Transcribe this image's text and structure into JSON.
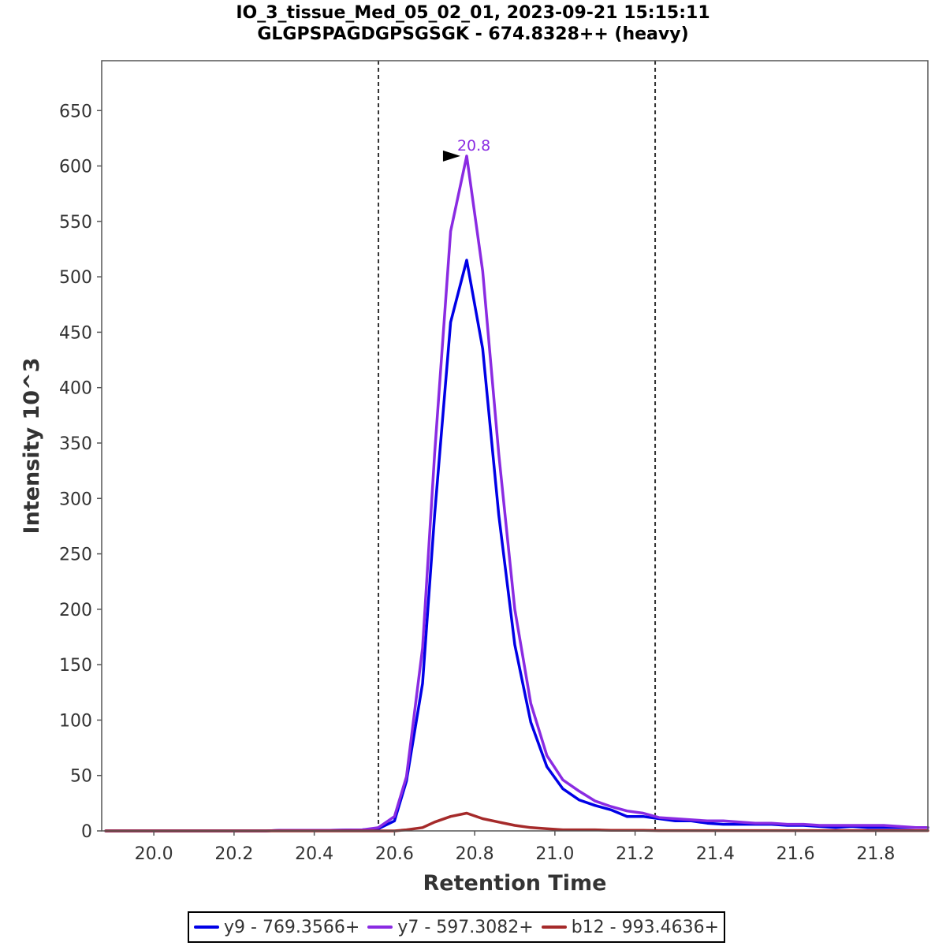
{
  "title_line1": "IO_3_tissue_Med_05_02_01, 2023-09-21 15:15:11",
  "title_line2": "GLGPSPAGDGPSGSGK - 674.8328++ (heavy)",
  "chart_data": {
    "type": "line",
    "xlabel": "Retention Time",
    "ylabel": "Intensity 10^3",
    "xlim": [
      19.87,
      21.93
    ],
    "ylim": [
      0,
      695
    ],
    "x_ticks": [
      "20.0",
      "20.2",
      "20.4",
      "20.6",
      "20.8",
      "21.0",
      "21.2",
      "21.4",
      "21.6",
      "21.8"
    ],
    "y_ticks": [
      "0",
      "50",
      "100",
      "150",
      "200",
      "250",
      "300",
      "350",
      "400",
      "450",
      "500",
      "550",
      "600",
      "650"
    ],
    "integration_bounds": [
      20.56,
      21.25
    ],
    "peak_annotation": {
      "label": "20.8",
      "x": 20.78,
      "y": 609,
      "color": "#8a2be2"
    },
    "x": [
      19.88,
      19.92,
      19.96,
      20.0,
      20.04,
      20.08,
      20.12,
      20.16,
      20.2,
      20.24,
      20.28,
      20.32,
      20.36,
      20.4,
      20.44,
      20.48,
      20.52,
      20.56,
      20.6,
      20.63,
      20.67,
      20.7,
      20.74,
      20.78,
      20.82,
      20.86,
      20.9,
      20.94,
      20.98,
      21.02,
      21.06,
      21.1,
      21.14,
      21.18,
      21.22,
      21.26,
      21.3,
      21.34,
      21.38,
      21.42,
      21.46,
      21.5,
      21.54,
      21.58,
      21.62,
      21.66,
      21.7,
      21.74,
      21.78,
      21.82,
      21.86,
      21.9,
      21.93
    ],
    "series": [
      {
        "name": "y9 - 769.3566+",
        "color": "#0000e6",
        "values": [
          0,
          0,
          0,
          0,
          0,
          0,
          0,
          0,
          0,
          0,
          0,
          0.5,
          0.5,
          0.5,
          0.5,
          0.8,
          1,
          2,
          9,
          45,
          133,
          285,
          459,
          515,
          435,
          285,
          168,
          98,
          58,
          38,
          28,
          23,
          19,
          13,
          13,
          11,
          9,
          9,
          7,
          6,
          6,
          6,
          6,
          5,
          5,
          4,
          3,
          4,
          3,
          3,
          3,
          3,
          3
        ]
      },
      {
        "name": "y7 - 597.3082+",
        "color": "#8a2be2",
        "values": [
          0,
          0,
          0,
          0,
          0,
          0,
          0,
          0,
          0,
          0,
          0,
          0.5,
          0.5,
          0.5,
          0.5,
          0.8,
          1,
          3,
          13,
          49,
          165,
          340,
          541,
          609,
          505,
          340,
          200,
          115,
          68,
          46,
          36,
          27,
          22,
          18,
          16,
          12,
          11,
          10,
          9,
          9,
          8,
          7,
          7,
          6,
          6,
          5,
          5,
          5,
          5,
          5,
          4,
          3,
          3
        ]
      },
      {
        "name": "b12 - 993.4636+",
        "color": "#a52a2a",
        "values": [
          0,
          0,
          0,
          0,
          0,
          0,
          0,
          0,
          0,
          0,
          0,
          0,
          0,
          0,
          0,
          0,
          0,
          0,
          0,
          1,
          3,
          8,
          13,
          16,
          11,
          8,
          5,
          3,
          2,
          1,
          1,
          1,
          0.5,
          0.5,
          0.5,
          0.3,
          0.3,
          0.3,
          0.3,
          0.3,
          0.3,
          0.3,
          0.3,
          0.3,
          0.3,
          0.3,
          0.3,
          0.3,
          0.3,
          0.3,
          0.3,
          0.3,
          0.3
        ]
      }
    ]
  }
}
